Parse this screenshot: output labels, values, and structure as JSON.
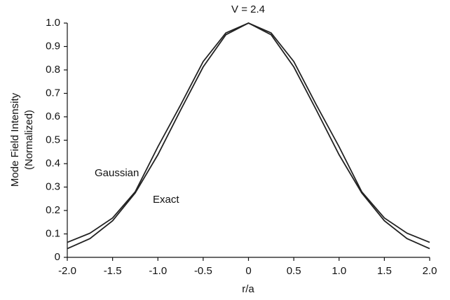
{
  "chart_data": {
    "type": "line",
    "title": "V = 2.4",
    "xlabel": "r/a",
    "ylabel": [
      "Mode Field Intensity",
      "(Normalized)"
    ],
    "x": [
      -2,
      -1.75,
      -1.5,
      -1.25,
      -1,
      -0.75,
      -0.5,
      -0.25,
      0,
      0.25,
      0.5,
      0.75,
      1,
      1.25,
      1.5,
      1.75,
      2
    ],
    "series": [
      {
        "name": "Gaussian",
        "color": "#222222",
        "values": [
          0.037,
          0.08,
          0.156,
          0.275,
          0.438,
          0.628,
          0.813,
          0.95,
          1,
          0.95,
          0.813,
          0.628,
          0.438,
          0.275,
          0.156,
          0.08,
          0.037
        ]
      },
      {
        "name": "Exact",
        "color": "#222222",
        "values": [
          0.064,
          0.103,
          0.168,
          0.28,
          0.472,
          0.65,
          0.836,
          0.958,
          1,
          0.958,
          0.836,
          0.65,
          0.472,
          0.28,
          0.168,
          0.103,
          0.064
        ]
      }
    ],
    "xlim": [
      -2,
      2
    ],
    "xticks": [
      {
        "value": -2,
        "label": "-2.0"
      },
      -1.5,
      {
        "value": -1,
        "label": "-1.0"
      },
      -0.5,
      0,
      0.5,
      {
        "value": 1,
        "label": "1.0"
      },
      1.5,
      {
        "value": 2,
        "label": "2.0"
      }
    ],
    "ylim": [
      0,
      1
    ],
    "yticks": [
      0,
      0.1,
      0.2,
      0.3,
      0.4,
      0.5,
      0.6,
      0.7,
      0.8,
      0.9,
      {
        "value": 1,
        "label": "1.0"
      }
    ],
    "grid": false
  }
}
